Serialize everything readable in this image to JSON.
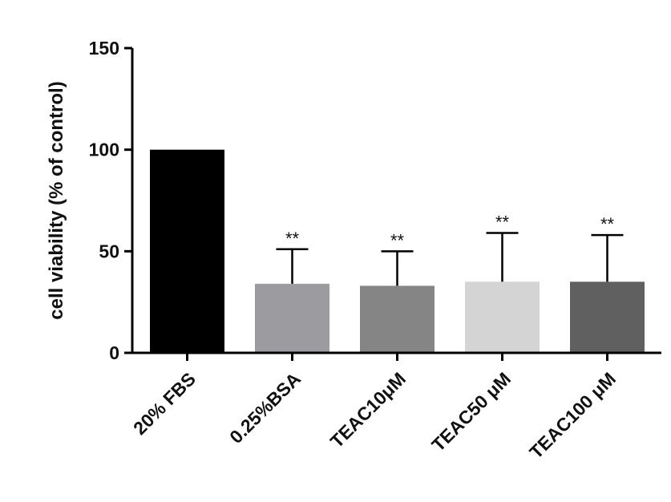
{
  "chart_data": {
    "type": "bar",
    "title": "",
    "xlabel": "",
    "ylabel": "cell viability (% of control)",
    "ylim": [
      0,
      150
    ],
    "yticks": [
      0,
      50,
      100,
      150
    ],
    "categories": [
      "20% FBS",
      "0.25%BSA",
      "TEAC10μM",
      "TEAC50 μM",
      "TEAC100 μM"
    ],
    "values": [
      100,
      34,
      33,
      35,
      35
    ],
    "error_upper": [
      0,
      17,
      17,
      24,
      23
    ],
    "significance": [
      "",
      "**",
      "**",
      "**",
      "**"
    ],
    "bar_colors": [
      "#000000",
      "#9c9ca0",
      "#858585",
      "#d4d4d4",
      "#606060"
    ],
    "grid": false,
    "legend": "none"
  }
}
